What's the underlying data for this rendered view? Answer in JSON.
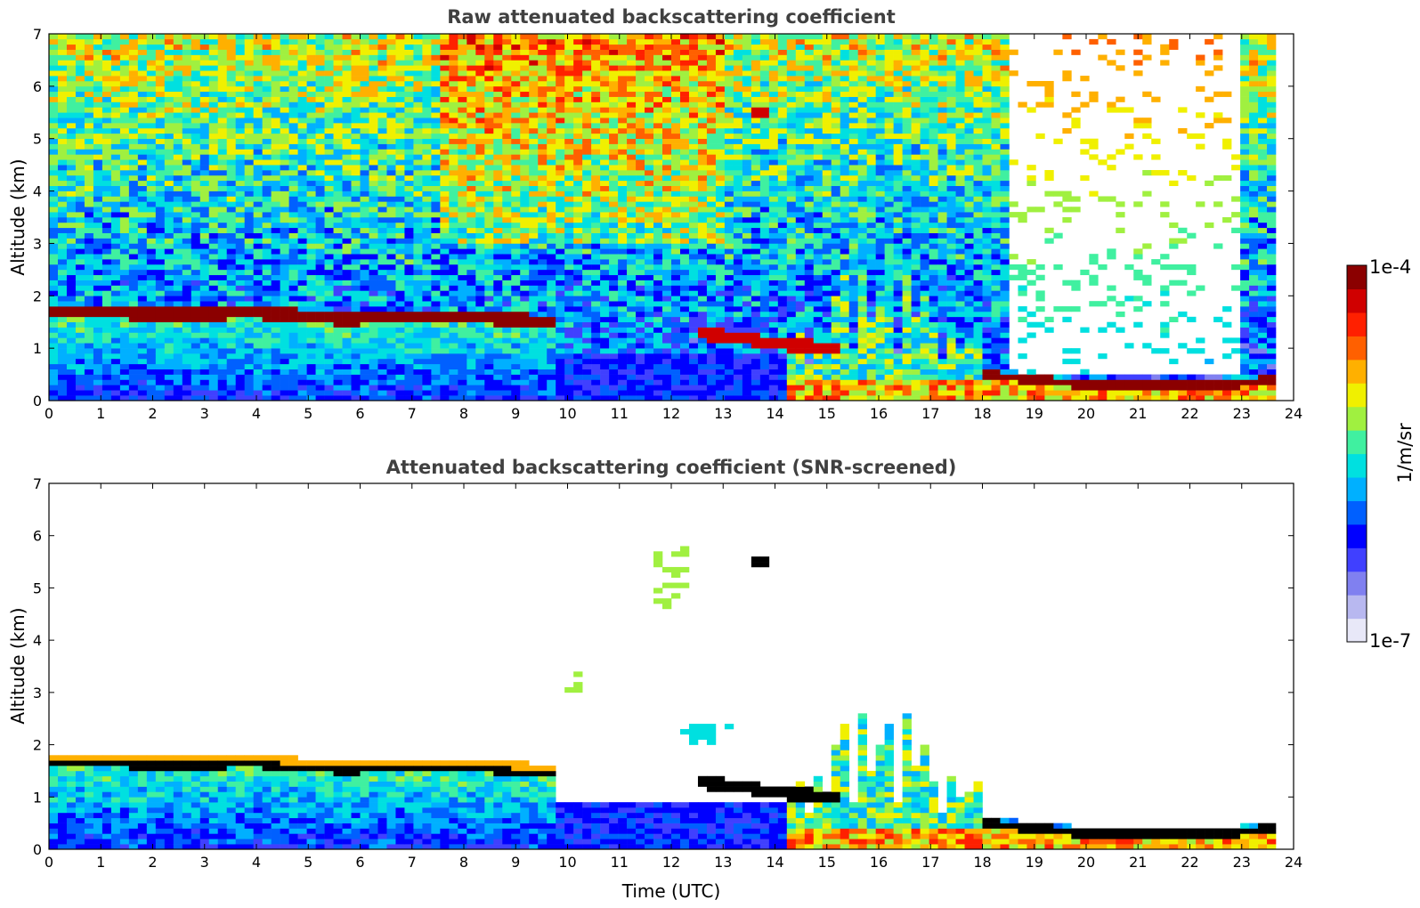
{
  "chart_data": [
    {
      "type": "heatmap",
      "title": "Raw attenuated backscattering coefficient",
      "xlabel": "",
      "ylabel": "Altitude (km)",
      "xlim": [
        0,
        24
      ],
      "ylim": [
        0,
        7
      ],
      "xticks": [
        "0",
        "1",
        "2",
        "3",
        "4",
        "5",
        "6",
        "7",
        "8",
        "9",
        "10",
        "11",
        "12",
        "13",
        "14",
        "15",
        "16",
        "17",
        "18",
        "19",
        "20",
        "21",
        "22",
        "23",
        "24"
      ],
      "yticks": [
        "0",
        "1",
        "2",
        "3",
        "4",
        "5",
        "6",
        "7"
      ],
      "data_end_time": 23.65,
      "features": {
        "boundary_layer_top_km": [
          [
            0,
            1.7
          ],
          [
            1,
            1.68
          ],
          [
            2,
            1.66
          ],
          [
            3,
            1.66
          ],
          [
            4,
            1.68
          ],
          [
            5,
            1.62
          ],
          [
            5.8,
            1.55
          ],
          [
            6.5,
            1.6
          ],
          [
            7.5,
            1.62
          ],
          [
            8.5,
            1.58
          ],
          [
            9.7,
            1.5
          ]
        ],
        "night_cloud_base_km": [
          [
            12.5,
            1.3
          ],
          [
            13.3,
            1.2
          ],
          [
            14,
            1.1
          ],
          [
            15,
            1.0
          ]
        ],
        "evening_low_layer_km": [
          [
            17,
            0.6
          ],
          [
            18,
            0.5
          ],
          [
            19,
            0.4
          ],
          [
            20,
            0.3
          ],
          [
            21,
            0.28
          ],
          [
            22,
            0.3
          ],
          [
            23,
            0.33
          ],
          [
            23.6,
            0.4
          ]
        ],
        "elevated_aerosol_km": [
          [
            13.7,
            5.55
          ]
        ]
      }
    },
    {
      "type": "heatmap",
      "title": "Attenuated backscattering coefficient (SNR-screened)",
      "xlabel": "Time (UTC)",
      "ylabel": "Altitude (km)",
      "xlim": [
        0,
        24
      ],
      "ylim": [
        0,
        7
      ],
      "xticks": [
        "0",
        "1",
        "2",
        "3",
        "4",
        "5",
        "6",
        "7",
        "8",
        "9",
        "10",
        "11",
        "12",
        "13",
        "14",
        "15",
        "16",
        "17",
        "18",
        "19",
        "20",
        "21",
        "22",
        "23",
        "24"
      ],
      "yticks": [
        "0",
        "1",
        "2",
        "3",
        "4",
        "5",
        "6",
        "7"
      ],
      "data_end_time": 23.65,
      "screened": true
    }
  ],
  "colorbar": {
    "label": "1/m/sr",
    "max_label": "1e-4",
    "min_label": "1e-7",
    "colors": [
      "#e8e8f8",
      "#b8b8f0",
      "#8080f0",
      "#4040ff",
      "#0000ff",
      "#0060ff",
      "#00b0ff",
      "#00e0e0",
      "#40f0a0",
      "#a0f040",
      "#f0f000",
      "#ffb000",
      "#ff6000",
      "#ff2000",
      "#d00000",
      "#8b0000"
    ]
  }
}
